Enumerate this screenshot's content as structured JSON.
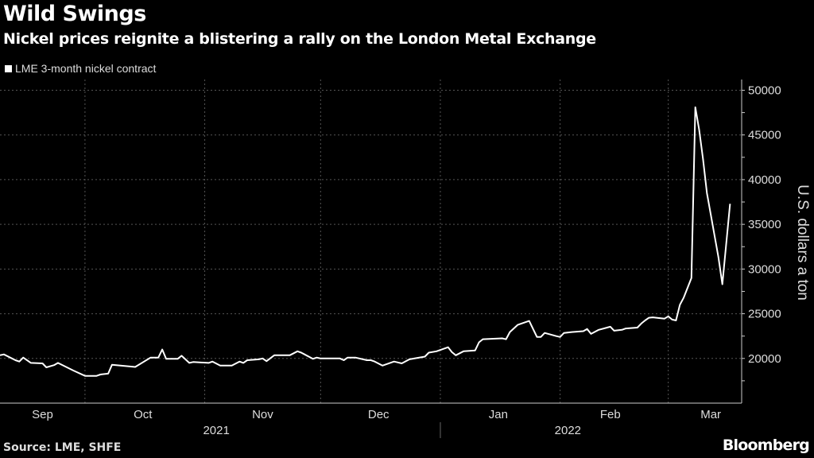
{
  "title": "Wild Swings",
  "subtitle": "Nickel prices reignite a blistering a rally on the London Metal Exchange",
  "source": "Source: LME, SHFE",
  "logo": "Bloomberg",
  "colors": {
    "background": "#000000",
    "line": "#ffffff",
    "grid": "#555555"
  },
  "chart_data": {
    "type": "line",
    "title": "Wild Swings",
    "subtitle": "Nickel prices reignite a blistering a rally on the London Metal Exchange",
    "ylabel": "U.S. dollars a ton",
    "ylim": [
      15000,
      51200
    ],
    "xlim": [
      "2021-09-09",
      "2022-03-20"
    ],
    "yticks": [
      20000,
      25000,
      30000,
      35000,
      40000,
      45000,
      50000
    ],
    "xticks": [
      {
        "label": "Sep",
        "date": "2021-09-20"
      },
      {
        "label": "Oct",
        "date": "2021-10-16"
      },
      {
        "label": "Nov",
        "date": "2021-11-16"
      },
      {
        "label": "Dec",
        "date": "2021-12-16"
      },
      {
        "label": "Jan",
        "date": "2022-01-16"
      },
      {
        "label": "Feb",
        "date": "2022-02-14"
      },
      {
        "label": "Mar",
        "date": "2022-03-12"
      }
    ],
    "month_gridlines": [
      "2021-10-01",
      "2021-11-01",
      "2021-12-01",
      "2022-01-01",
      "2022-02-01",
      "2022-03-01"
    ],
    "years": [
      {
        "label": "2021",
        "date": "2021-11-04"
      },
      {
        "label": "2022",
        "date": "2022-02-03"
      }
    ],
    "year_separator": "2022-01-01",
    "grid": true,
    "legend_placement": "top-left",
    "series": [
      {
        "name": "LME 3-month nickel contract",
        "points": [
          [
            "2021-09-09",
            20350
          ],
          [
            "2021-09-10",
            20450
          ],
          [
            "2021-09-13",
            19800
          ],
          [
            "2021-09-14",
            19650
          ],
          [
            "2021-09-15",
            20100
          ],
          [
            "2021-09-17",
            19500
          ],
          [
            "2021-09-20",
            19450
          ],
          [
            "2021-09-21",
            19000
          ],
          [
            "2021-09-23",
            19250
          ],
          [
            "2021-09-24",
            19500
          ],
          [
            "2021-09-28",
            18650
          ],
          [
            "2021-10-01",
            18050
          ],
          [
            "2021-10-04",
            18050
          ],
          [
            "2021-10-05",
            18200
          ],
          [
            "2021-10-07",
            18300
          ],
          [
            "2021-10-08",
            19300
          ],
          [
            "2021-10-14",
            19050
          ],
          [
            "2021-10-18",
            20100
          ],
          [
            "2021-10-20",
            20100
          ],
          [
            "2021-10-21",
            21000
          ],
          [
            "2021-10-22",
            19950
          ],
          [
            "2021-10-25",
            19950
          ],
          [
            "2021-10-26",
            20300
          ],
          [
            "2021-10-28",
            19500
          ],
          [
            "2021-10-29",
            19600
          ],
          [
            "2021-11-02",
            19500
          ],
          [
            "2021-11-03",
            19650
          ],
          [
            "2021-11-05",
            19200
          ],
          [
            "2021-11-08",
            19200
          ],
          [
            "2021-11-10",
            19650
          ],
          [
            "2021-11-11",
            19500
          ],
          [
            "2021-11-12",
            19800
          ],
          [
            "2021-11-15",
            19900
          ],
          [
            "2021-11-16",
            20000
          ],
          [
            "2021-11-17",
            19700
          ],
          [
            "2021-11-19",
            20350
          ],
          [
            "2021-11-23",
            20350
          ],
          [
            "2021-11-25",
            20800
          ],
          [
            "2021-11-26",
            20650
          ],
          [
            "2021-11-29",
            19950
          ],
          [
            "2021-11-30",
            20100
          ],
          [
            "2021-12-01",
            20000
          ],
          [
            "2021-12-06",
            20000
          ],
          [
            "2021-12-07",
            19800
          ],
          [
            "2021-12-08",
            20100
          ],
          [
            "2021-12-10",
            20100
          ],
          [
            "2021-12-13",
            19800
          ],
          [
            "2021-12-14",
            19800
          ],
          [
            "2021-12-15",
            19650
          ],
          [
            "2021-12-17",
            19200
          ],
          [
            "2021-12-20",
            19650
          ],
          [
            "2021-12-21",
            19550
          ],
          [
            "2021-12-22",
            19450
          ],
          [
            "2021-12-24",
            19900
          ],
          [
            "2021-12-28",
            20200
          ],
          [
            "2021-12-29",
            20650
          ],
          [
            "2021-12-31",
            20800
          ],
          [
            "2022-01-03",
            21250
          ],
          [
            "2022-01-04",
            20700
          ],
          [
            "2022-01-05",
            20350
          ],
          [
            "2022-01-07",
            20800
          ],
          [
            "2022-01-10",
            20900
          ],
          [
            "2022-01-11",
            21800
          ],
          [
            "2022-01-12",
            22150
          ],
          [
            "2022-01-17",
            22250
          ],
          [
            "2022-01-18",
            22150
          ],
          [
            "2022-01-19",
            22950
          ],
          [
            "2022-01-21",
            23750
          ],
          [
            "2022-01-24",
            24200
          ],
          [
            "2022-01-26",
            22400
          ],
          [
            "2022-01-27",
            22400
          ],
          [
            "2022-01-28",
            22850
          ],
          [
            "2022-01-31",
            22500
          ],
          [
            "2022-02-01",
            22400
          ],
          [
            "2022-02-02",
            22850
          ],
          [
            "2022-02-04",
            22950
          ],
          [
            "2022-02-07",
            23050
          ],
          [
            "2022-02-08",
            23300
          ],
          [
            "2022-02-09",
            22750
          ],
          [
            "2022-02-11",
            23200
          ],
          [
            "2022-02-14",
            23550
          ],
          [
            "2022-02-15",
            23100
          ],
          [
            "2022-02-17",
            23200
          ],
          [
            "2022-02-18",
            23350
          ],
          [
            "2022-02-21",
            23450
          ],
          [
            "2022-02-22",
            23900
          ],
          [
            "2022-02-23",
            24250
          ],
          [
            "2022-02-24",
            24550
          ],
          [
            "2022-02-25",
            24600
          ],
          [
            "2022-02-28",
            24450
          ],
          [
            "2022-03-01",
            24700
          ],
          [
            "2022-03-02",
            24350
          ],
          [
            "2022-03-03",
            24250
          ],
          [
            "2022-03-04",
            26000
          ],
          [
            "2022-03-05",
            26800
          ],
          [
            "2022-03-07",
            29000
          ],
          [
            "2022-03-08",
            48100
          ],
          [
            "2022-03-09",
            45600
          ],
          [
            "2022-03-10",
            42300
          ],
          [
            "2022-03-11",
            38500
          ],
          [
            "2022-03-14",
            31300
          ],
          [
            "2022-03-15",
            28300
          ],
          [
            "2022-03-17",
            37300
          ]
        ]
      }
    ]
  }
}
